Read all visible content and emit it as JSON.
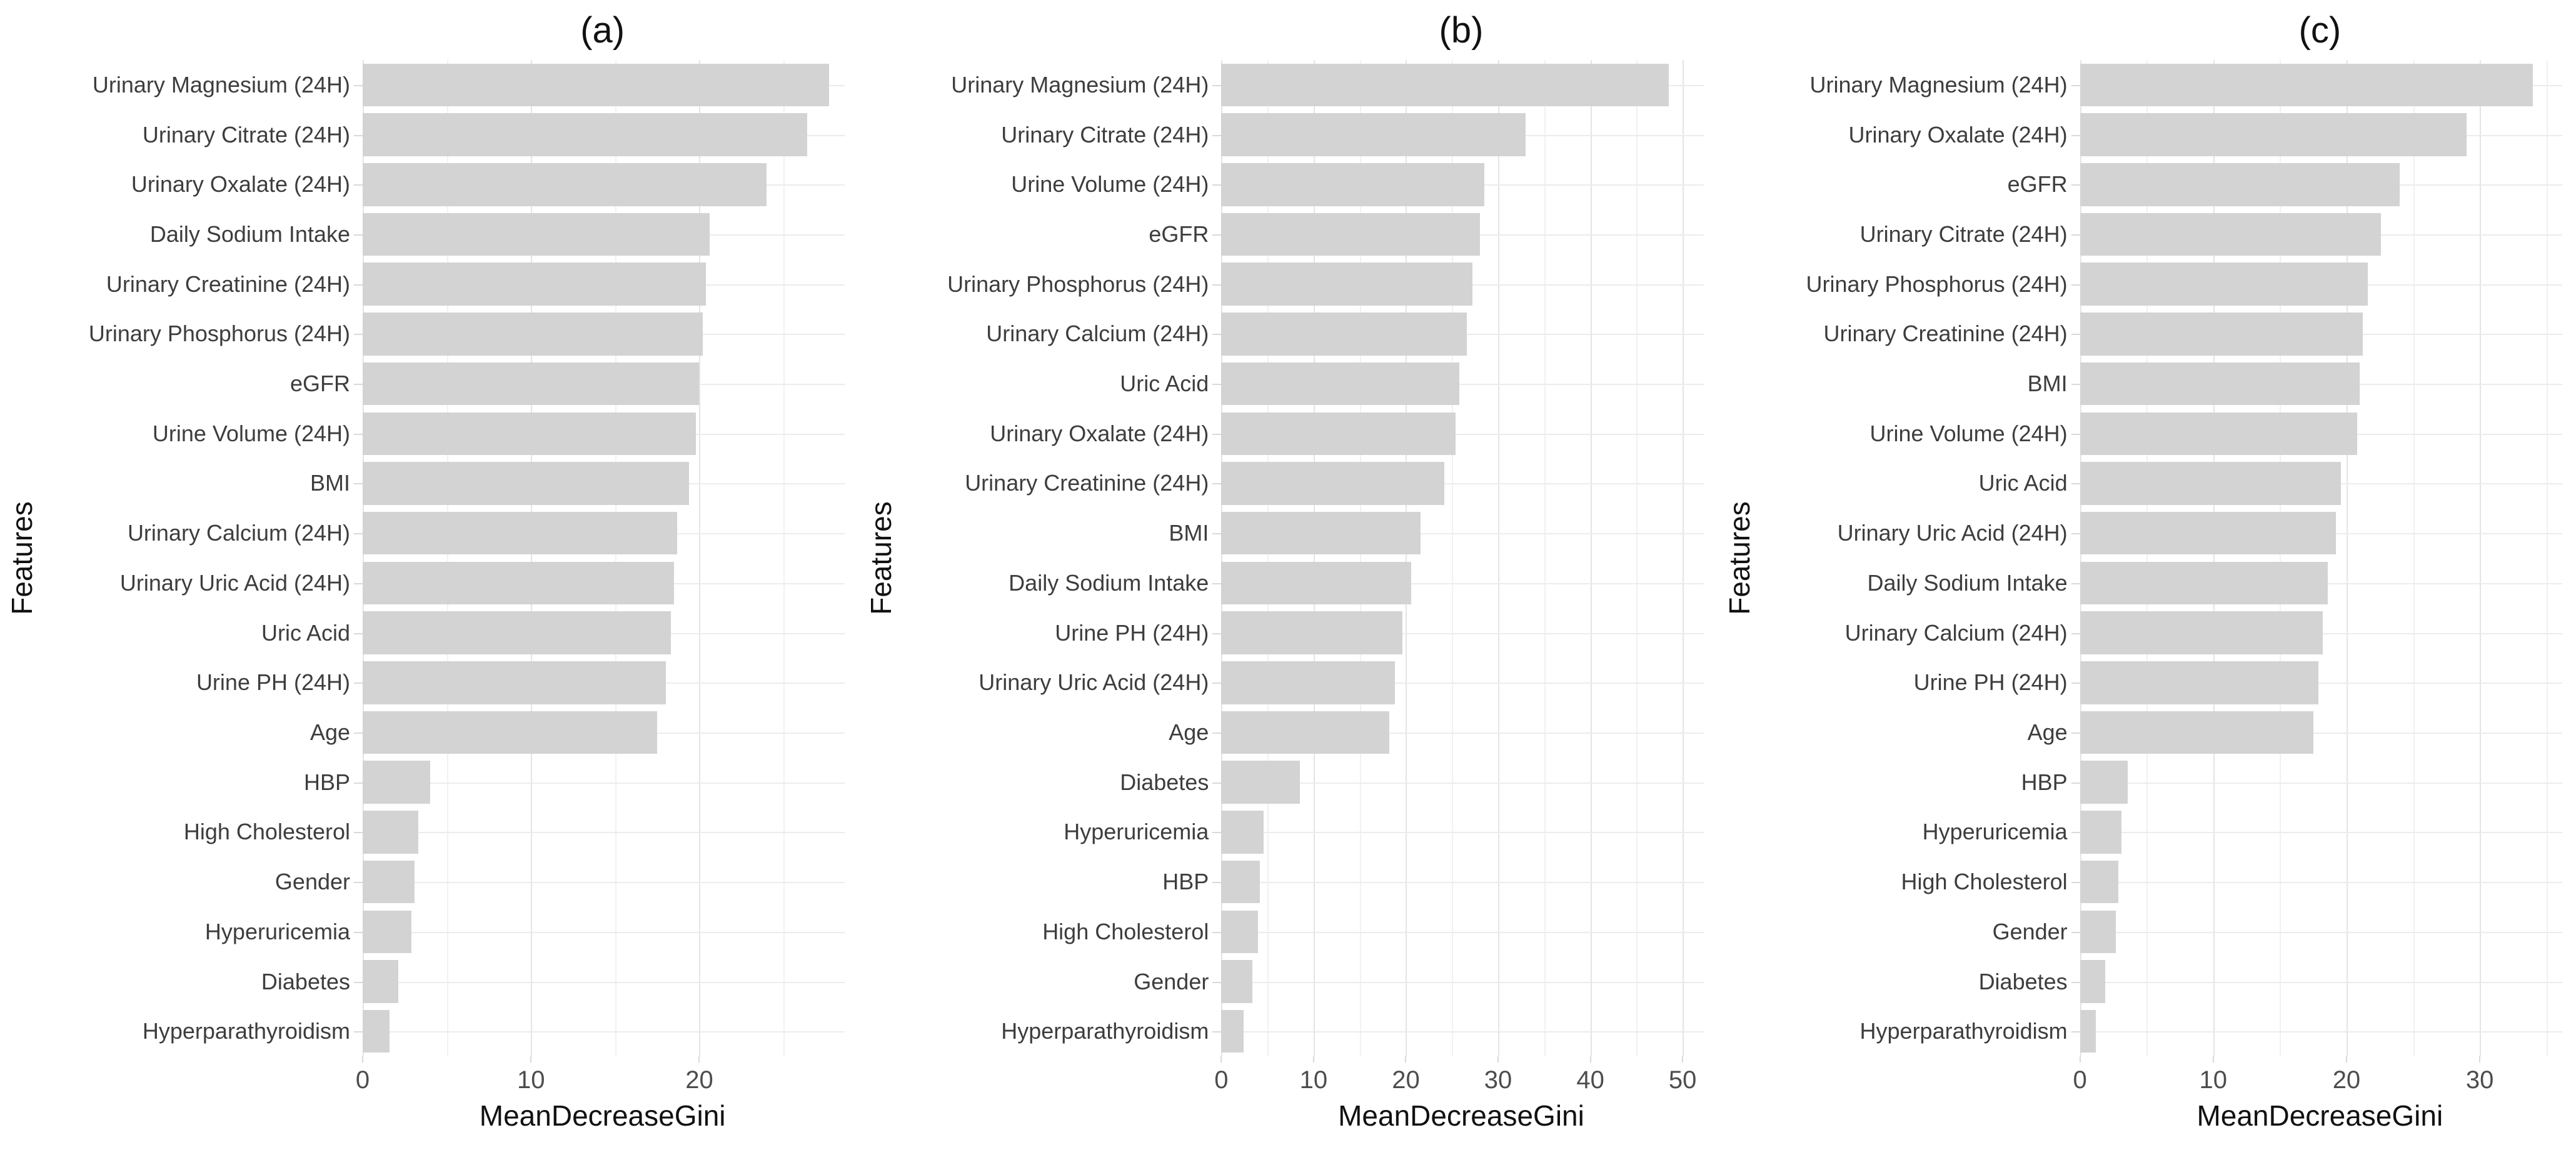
{
  "figure": {
    "kind": "horizontal-bar-figure",
    "bar_color": "#d3d3d3",
    "grid_major_color": "#e4e4e4",
    "grid_minor_color": "#f1f1f1",
    "row_grid_color": "#ececec",
    "tick_text_color": "#4d4d4d",
    "label_text_color": "#3d3d3d",
    "title_text_color": "#111111",
    "background_color": "#ffffff"
  },
  "chart_data": [
    {
      "type": "bar",
      "orientation": "horizontal",
      "title": "(a)",
      "xlabel": "MeanDecreaseGini",
      "ylabel": "Features",
      "xlim": [
        0,
        28.5
      ],
      "xticks": [
        0,
        10,
        20
      ],
      "grid": true,
      "legend": "none",
      "categories": [
        "Urinary Magnesium (24H)",
        "Urinary Citrate (24H)",
        "Urinary Oxalate (24H)",
        "Daily Sodium Intake",
        "Urinary Creatinine (24H)",
        "Urinary Phosphorus (24H)",
        "eGFR",
        "Urine Volume (24H)",
        "BMI",
        "Urinary Calcium (24H)",
        "Urinary Uric Acid (24H)",
        "Uric Acid",
        "Urine PH (24H)",
        "Age",
        "HBP",
        "High Cholesterol",
        "Gender",
        "Hyperuricemia",
        "Diabetes",
        "Hyperparathyroidism"
      ],
      "values": [
        27.7,
        26.4,
        24.0,
        20.6,
        20.4,
        20.2,
        20.0,
        19.8,
        19.4,
        18.7,
        18.5,
        18.3,
        18.0,
        17.5,
        4.0,
        3.3,
        3.1,
        2.9,
        2.1,
        1.6
      ]
    },
    {
      "type": "bar",
      "orientation": "horizontal",
      "title": "(b)",
      "xlabel": "MeanDecreaseGini",
      "ylabel": "Features",
      "xlim": [
        0,
        52
      ],
      "xticks": [
        0,
        10,
        20,
        30,
        40,
        50
      ],
      "grid": true,
      "legend": "none",
      "categories": [
        "Urinary Magnesium (24H)",
        "Urinary Citrate (24H)",
        "Urine Volume (24H)",
        "eGFR",
        "Urinary Phosphorus (24H)",
        "Urinary Calcium (24H)",
        "Uric Acid",
        "Urinary Oxalate (24H)",
        "Urinary Creatinine (24H)",
        "BMI",
        "Daily Sodium Intake",
        "Urine PH (24H)",
        "Urinary Uric Acid (24H)",
        "Age",
        "Diabetes",
        "Hyperuricemia",
        "HBP",
        "High Cholesterol",
        "Gender",
        "Hyperparathyroidism"
      ],
      "values": [
        48.5,
        33.0,
        28.5,
        28.0,
        27.2,
        26.6,
        25.8,
        25.4,
        24.2,
        21.6,
        20.6,
        19.6,
        18.8,
        18.2,
        8.5,
        4.6,
        4.2,
        4.0,
        3.4,
        2.4
      ]
    },
    {
      "type": "bar",
      "orientation": "horizontal",
      "title": "(c)",
      "xlabel": "MeanDecreaseGini",
      "ylabel": "Features",
      "xlim": [
        0,
        36
      ],
      "xticks": [
        0,
        10,
        20,
        30
      ],
      "grid": true,
      "legend": "none",
      "categories": [
        "Urinary Magnesium (24H)",
        "Urinary Oxalate (24H)",
        "eGFR",
        "Urinary Citrate (24H)",
        "Urinary Phosphorus (24H)",
        "Urinary Creatinine (24H)",
        "BMI",
        "Urine Volume (24H)",
        "Uric Acid",
        "Urinary Uric Acid (24H)",
        "Daily Sodium Intake",
        "Urinary Calcium (24H)",
        "Urine PH (24H)",
        "Age",
        "HBP",
        "Hyperuricemia",
        "High Cholesterol",
        "Gender",
        "Diabetes",
        "Hyperparathyroidism"
      ],
      "values": [
        34.0,
        29.0,
        24.0,
        22.6,
        21.6,
        21.2,
        21.0,
        20.8,
        19.6,
        19.2,
        18.6,
        18.2,
        17.9,
        17.5,
        3.6,
        3.1,
        2.9,
        2.7,
        1.9,
        1.2
      ]
    }
  ]
}
